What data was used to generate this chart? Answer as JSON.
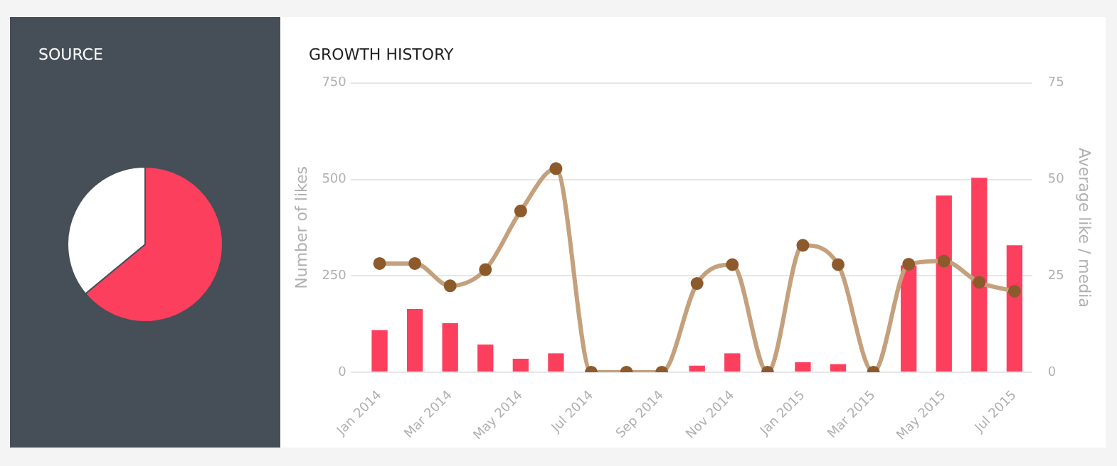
{
  "chart_data": [
    {
      "type": "pie",
      "title": "SOURCE",
      "categories": [
        null,
        null
      ],
      "values": [
        64,
        36
      ],
      "colors": [
        "#fd3f5e",
        "#ffffff"
      ],
      "legend": false
    },
    {
      "type": "bar",
      "title": "GROWTH HISTORY",
      "ylabel": "Number of likes",
      "y2label": "Average like / media",
      "categories": [
        "Jan 2014",
        null,
        "Mar 2014",
        null,
        "May 2014",
        null,
        "Jul 2014",
        null,
        "Sep 2014",
        null,
        "Nov 2014",
        null,
        "Jan 2015",
        null,
        "Mar 2015",
        null,
        "May 2015",
        null,
        "Jul 2015"
      ],
      "series": [
        {
          "type": "bar",
          "color": "#fd3f5e",
          "values": [
            109,
            164,
            127,
            72,
            35,
            49,
            0,
            0,
            0,
            17,
            49,
            0,
            26,
            21,
            0,
            277,
            458,
            504,
            329
          ]
        },
        {
          "type": "line",
          "axis": "y2",
          "color": "#c4a07c",
          "values": [
            28.2,
            28.2,
            22.4,
            26.6,
            41.8,
            52.8,
            0,
            0,
            0,
            23,
            27.9,
            0,
            32.9,
            27.9,
            0,
            28,
            28.8,
            23.3,
            21
          ]
        }
      ],
      "ylim": [
        0,
        750
      ],
      "yticks": [
        0,
        250,
        500,
        750
      ],
      "y2lim": [
        0,
        75
      ],
      "y2ticks": [
        0,
        25,
        50,
        75
      ],
      "grid": "y",
      "legend": false,
      "marker": "circle",
      "line_style": "solid"
    }
  ]
}
